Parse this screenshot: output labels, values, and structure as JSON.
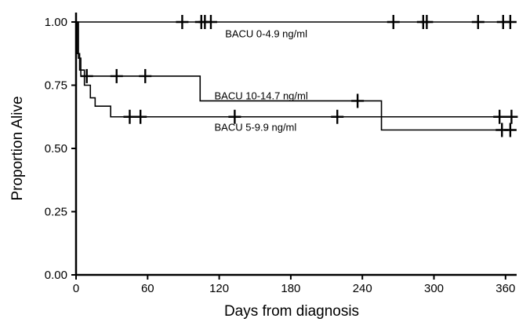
{
  "chart_data": {
    "type": "line",
    "subtype": "kaplan-meier-step",
    "title": "",
    "xlabel": "Days from diagnosis",
    "ylabel": "Proportion Alive",
    "xlim": [
      0,
      370
    ],
    "ylim": [
      0,
      1.0
    ],
    "xticks": [
      0,
      60,
      120,
      180,
      240,
      300,
      360
    ],
    "xtick_labels": [
      "0",
      "60",
      "120",
      "180",
      "240",
      "300",
      "360"
    ],
    "yticks": [
      0,
      0.25,
      0.5,
      0.75,
      1.0
    ],
    "ytick_labels": [
      "0.00",
      "0.25",
      "0.50",
      "0.75",
      "1.00"
    ],
    "grid": false,
    "legend": "none",
    "series": [
      {
        "name": "BACU 0-4.9 ng/ml",
        "steps": [
          [
            0,
            1.0
          ],
          [
            367,
            1.0
          ]
        ],
        "censored": [
          [
            89,
            1.0
          ],
          [
            105,
            1.0
          ],
          [
            108,
            1.0
          ],
          [
            113,
            1.0
          ],
          [
            266,
            1.0
          ],
          [
            291,
            1.0
          ],
          [
            294,
            1.0
          ],
          [
            337,
            1.0
          ],
          [
            358,
            1.0
          ],
          [
            364,
            1.0
          ]
        ],
        "label_at": [
          125,
          0.955
        ]
      },
      {
        "name": "BACU 10-14.7 ng/ml",
        "steps": [
          [
            0,
            1.0
          ],
          [
            2,
            0.857
          ],
          [
            4,
            0.786
          ],
          [
            104,
            0.786
          ],
          [
            104,
            0.688
          ],
          [
            256,
            0.688
          ],
          [
            256,
            0.573
          ],
          [
            367,
            0.573
          ]
        ],
        "censored": [
          [
            9,
            0.786
          ],
          [
            34,
            0.786
          ],
          [
            58,
            0.786
          ],
          [
            236,
            0.688
          ],
          [
            357,
            0.573
          ],
          [
            364,
            0.573
          ]
        ],
        "label_at": [
          116,
          0.71
        ]
      },
      {
        "name": "BACU 5-9.9 ng/ml",
        "steps": [
          [
            0,
            1.0
          ],
          [
            1,
            0.875
          ],
          [
            3,
            0.81
          ],
          [
            7,
            0.75
          ],
          [
            12,
            0.75
          ],
          [
            12,
            0.7
          ],
          [
            16,
            0.7
          ],
          [
            16,
            0.667
          ],
          [
            29,
            0.667
          ],
          [
            29,
            0.625
          ],
          [
            367,
            0.625
          ]
        ],
        "censored": [
          [
            45,
            0.625
          ],
          [
            54,
            0.625
          ],
          [
            133,
            0.625
          ],
          [
            219,
            0.625
          ],
          [
            355,
            0.625
          ],
          [
            365,
            0.625
          ]
        ],
        "label_at": [
          116,
          0.585
        ]
      }
    ]
  }
}
